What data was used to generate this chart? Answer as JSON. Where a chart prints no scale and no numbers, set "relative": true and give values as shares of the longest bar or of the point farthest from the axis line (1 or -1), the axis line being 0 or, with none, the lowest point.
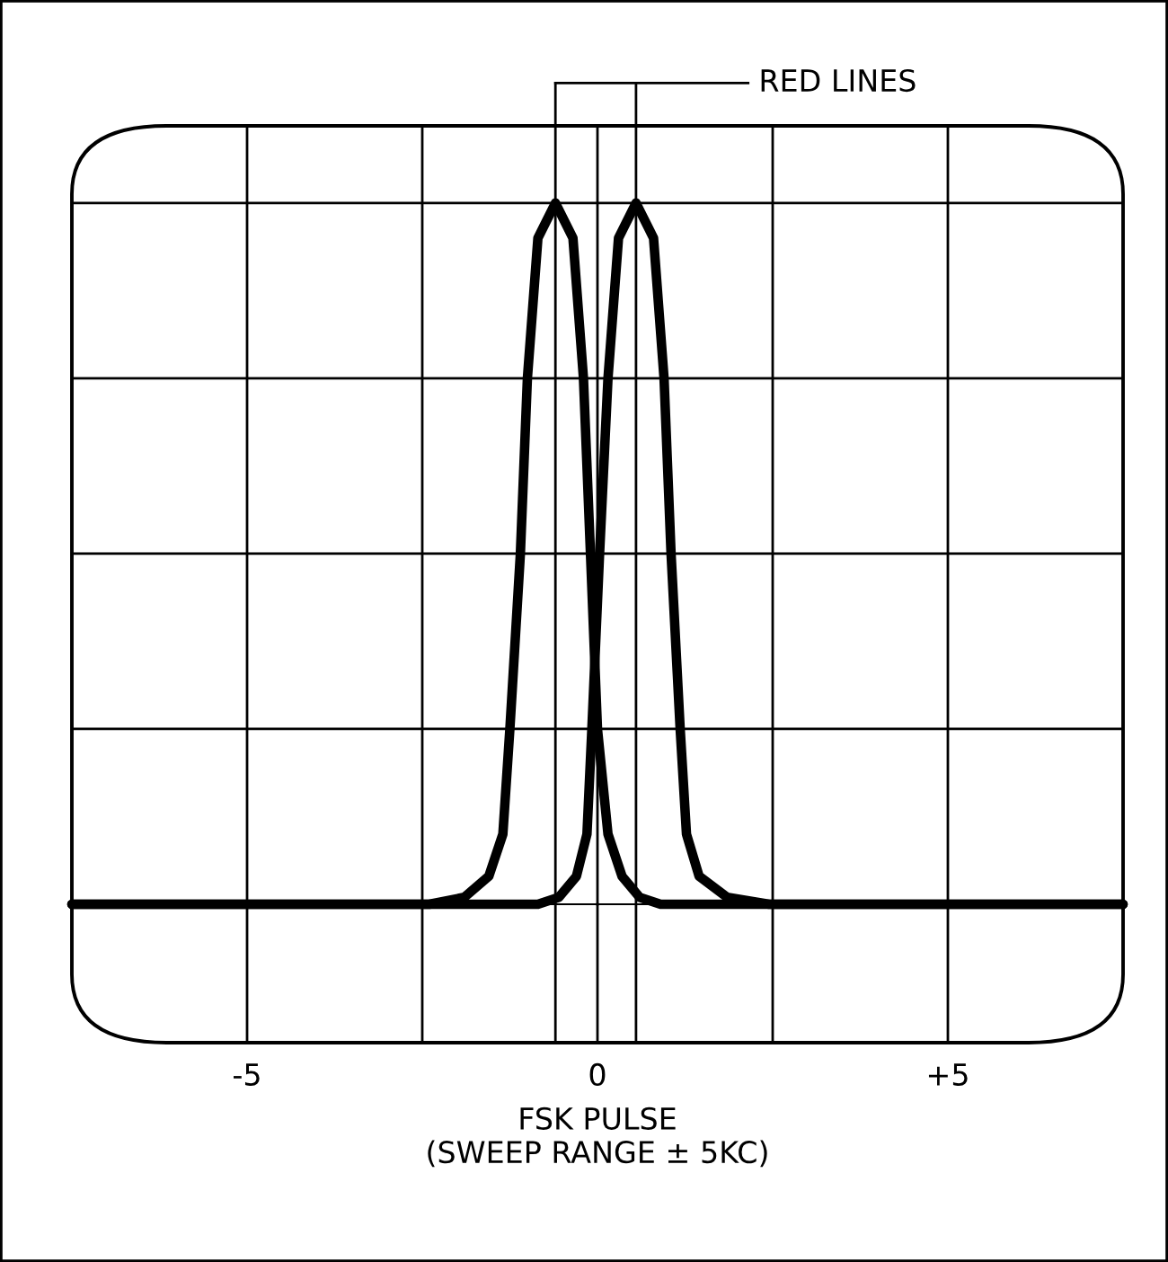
{
  "chart_data": {
    "type": "line",
    "relative": true,
    "xlabel": "FSK PULSE\n(SWEEP RANGE ± 5KC)",
    "xlim": [
      -7.5,
      7.5
    ],
    "xticks": [
      -5,
      {
        "value": -2.5,
        "label": null
      },
      {
        "value": 0,
        "label": "0"
      },
      {
        "value": 2.5,
        "label": null
      },
      {
        "value": 5,
        "label": "+5"
      }
    ],
    "series": [
      {
        "color": "#000000",
        "x": [
          -7.5,
          -2.4,
          -1.9,
          -1.55,
          -1.35,
          -1.25,
          -1.1,
          -1.0,
          -0.85,
          -0.6,
          -0.35,
          -0.2,
          -0.1,
          0.0,
          0.15,
          0.35,
          0.6,
          0.9,
          7.5
        ],
        "values": [
          0,
          0,
          0.01,
          0.04,
          0.1,
          0.25,
          0.5,
          0.75,
          0.95,
          1.0,
          0.95,
          0.75,
          0.5,
          0.25,
          0.1,
          0.04,
          0.01,
          0,
          0
        ]
      },
      {
        "color": "#000000",
        "x": [
          -7.5,
          -0.85,
          -0.55,
          -0.3,
          -0.15,
          -0.08,
          0.03,
          0.15,
          0.3,
          0.55,
          0.8,
          0.95,
          1.05,
          1.18,
          1.27,
          1.45,
          1.85,
          2.45,
          7.5
        ],
        "values": [
          0,
          0,
          0.01,
          0.04,
          0.1,
          0.25,
          0.5,
          0.75,
          0.95,
          1.0,
          0.95,
          0.75,
          0.5,
          0.25,
          0.1,
          0.04,
          0.01,
          0,
          0
        ]
      }
    ],
    "ref_lines": [
      {
        "axis": "x",
        "value": -0.6,
        "color": "#000000"
      },
      {
        "axis": "x",
        "value": 0.55,
        "color": "#000000"
      }
    ],
    "annotations": [
      "RED LINES"
    ],
    "grid": true,
    "legend": false,
    "marker": "none",
    "line_style": "solid"
  }
}
